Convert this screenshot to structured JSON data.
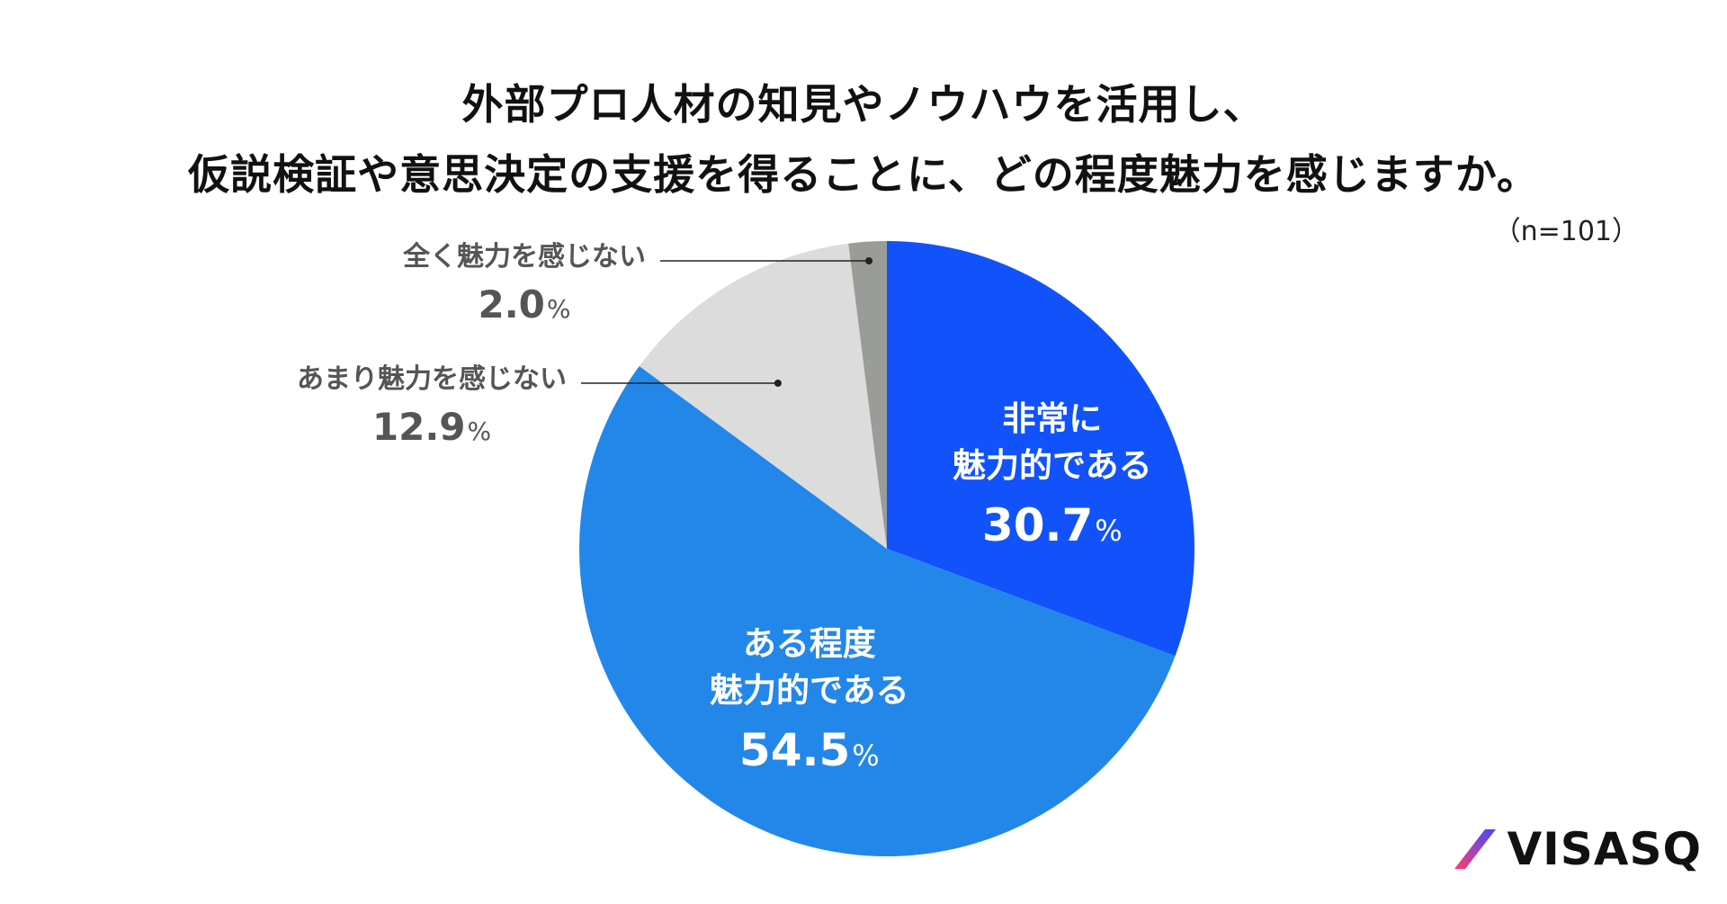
{
  "chart_data": {
    "type": "pie",
    "title_lines": [
      "外部プロ人材の知見やノウハウを活用し、",
      "仮説検証や意思決定の支援を得ることに、どの程度魅力を感じますか。"
    ],
    "sample_size": "（n=101）",
    "unit": "%",
    "start_angle_deg": 0,
    "direction": "clockwise",
    "slices": [
      {
        "label_lines": [
          "非常に",
          "魅力的である"
        ],
        "value": 30.7,
        "value_text": "30.7",
        "color": "#1252FA",
        "label_placement": "inside"
      },
      {
        "label_lines": [
          "ある程度",
          "魅力的である"
        ],
        "value": 54.5,
        "value_text": "54.5",
        "color": "#2387EA",
        "label_placement": "inside"
      },
      {
        "label_lines": [
          "あまり魅力を感じない"
        ],
        "value": 12.9,
        "value_text": "12.9",
        "color": "#DCDCDC",
        "label_placement": "outside"
      },
      {
        "label_lines": [
          "全く魅力を感じない"
        ],
        "value": 2.0,
        "value_text": "2.0",
        "color": "#9A9C98",
        "label_placement": "outside"
      }
    ]
  },
  "logo": {
    "text": "VISASQ",
    "mark_colors": [
      "#FF3D6E",
      "#3A4BFF"
    ]
  }
}
